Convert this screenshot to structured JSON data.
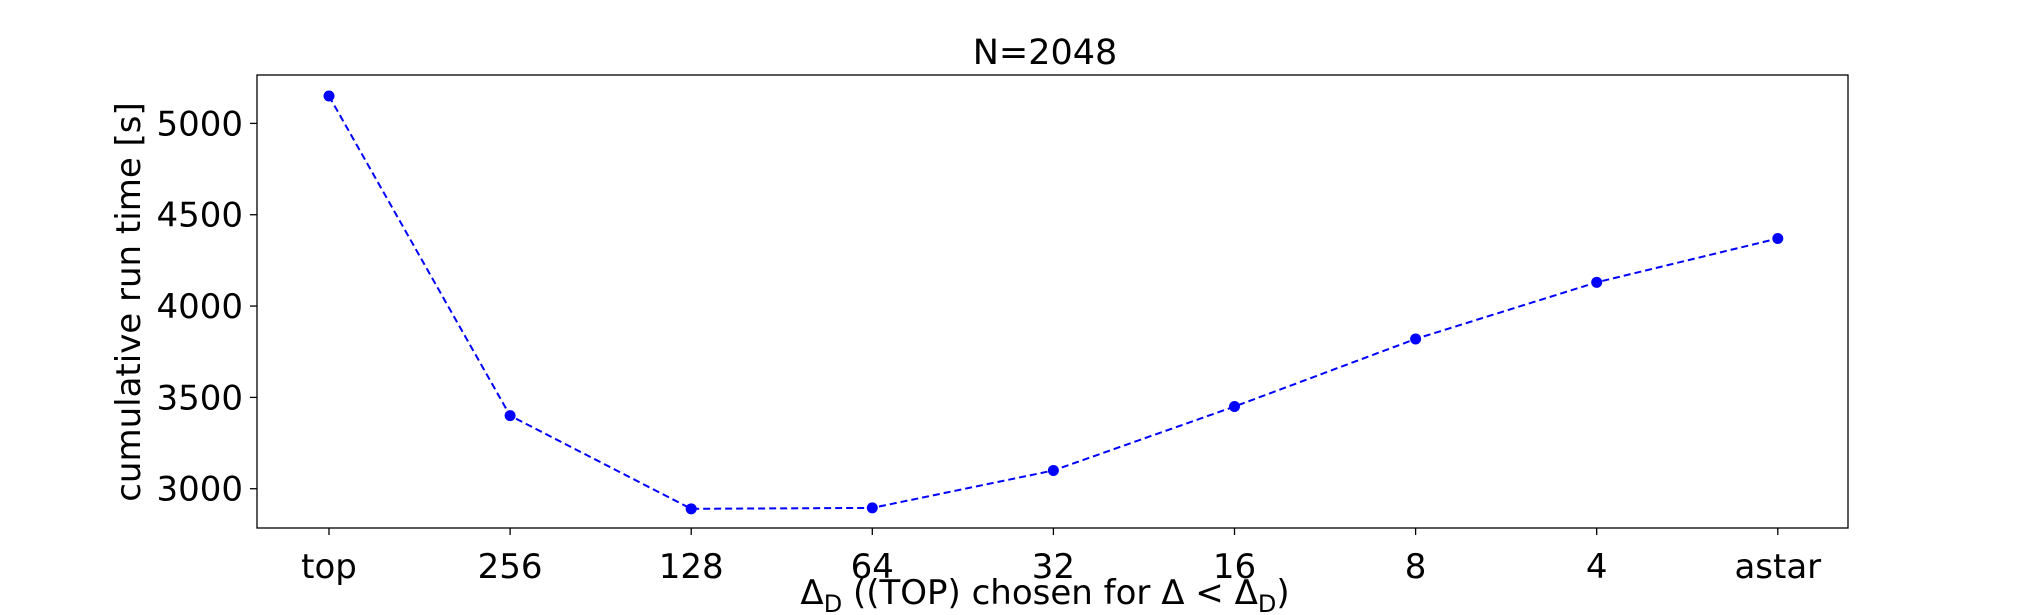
{
  "chart_data": {
    "type": "line",
    "title": "N=2048",
    "xlabel": {
      "prefix": "Δ",
      "prefix_sub": "D",
      "middle": " ((TOP) chosen for Δ < Δ",
      "suffix_sub": "D",
      "suffix": ")"
    },
    "ylabel": "cumulative run time [s]",
    "categories": [
      "top",
      "256",
      "128",
      "64",
      "32",
      "16",
      "8",
      "4",
      "astar"
    ],
    "values": [
      5150,
      3400,
      2890,
      2895,
      3100,
      3450,
      3820,
      4130,
      4370
    ],
    "yticks": [
      3000,
      3500,
      4000,
      4500,
      5000
    ],
    "ylim": [
      2785,
      5265
    ],
    "color": "#0000ff",
    "line_style": "dashed",
    "marker": "circle",
    "grid": false,
    "legend": false
  }
}
